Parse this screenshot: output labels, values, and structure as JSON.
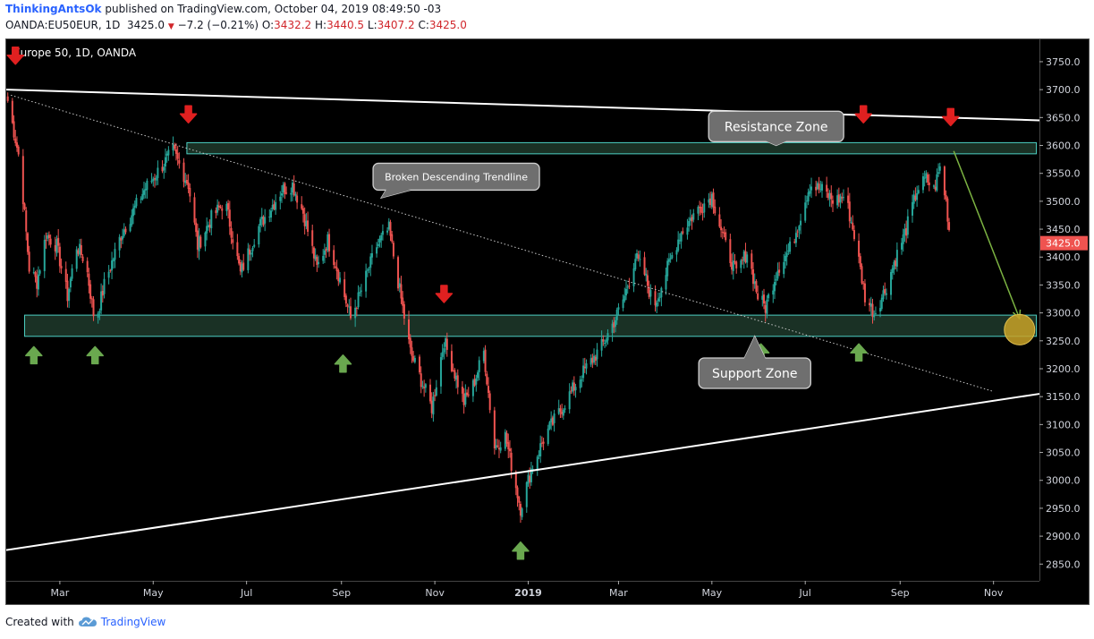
{
  "header": {
    "author": "ThinkingAntsOk",
    "published": "published on TradingView.com, October 04, 2019 08:49:50 -03",
    "symbol_line": "OANDA:EU50EUR, 1D",
    "last": "3425.0",
    "change": "−7.2 (−0.21%)",
    "ohlc_open_label": "O:",
    "ohlc_open": "3432.2",
    "ohlc_high_label": "H:",
    "ohlc_high": "3440.5",
    "ohlc_low_label": "L:",
    "ohlc_low": "3407.2",
    "ohlc_close_label": "C:",
    "ohlc_close": "3425.0"
  },
  "footer": {
    "created_with": "Created with",
    "brand": "TradingView"
  },
  "colors": {
    "background": "#000000",
    "up": "#26a69a",
    "down": "#ef5350",
    "zone_border": "#4dd0c4",
    "zone_fill": "#1e3a2c",
    "arrow_red": "#e02020",
    "arrow_green": "#6aa84f",
    "target": "#c9a227"
  },
  "chart_data": {
    "type": "candlestick",
    "title": "Europe 50, 1D, OANDA",
    "ylim": [
      2820,
      3790
    ],
    "y_ticks": [
      "3750.0",
      "3700.0",
      "3650.0",
      "3600.0",
      "3550.0",
      "3500.0",
      "3450.0",
      "3400.0",
      "3350.0",
      "3300.0",
      "3250.0",
      "3200.0",
      "3150.0",
      "3100.0",
      "3050.0",
      "3000.0",
      "2950.0",
      "2900.0",
      "2850.0"
    ],
    "x_ticks": [
      {
        "label": "Mar",
        "date": "2018-03-01",
        "bold": false
      },
      {
        "label": "May",
        "date": "2018-05-01",
        "bold": false
      },
      {
        "label": "Jul",
        "date": "2018-07-01",
        "bold": false
      },
      {
        "label": "Sep",
        "date": "2018-09-01",
        "bold": false
      },
      {
        "label": "Nov",
        "date": "2018-11-01",
        "bold": false
      },
      {
        "label": "2019",
        "date": "2019-01-01",
        "bold": true
      },
      {
        "label": "Mar",
        "date": "2019-03-01",
        "bold": false
      },
      {
        "label": "May",
        "date": "2019-05-01",
        "bold": false
      },
      {
        "label": "Jul",
        "date": "2019-07-01",
        "bold": false
      },
      {
        "label": "Sep",
        "date": "2019-09-01",
        "bold": false
      },
      {
        "label": "Nov",
        "date": "2019-11-01",
        "bold": false
      }
    ],
    "xlim": [
      "2018-01-25",
      "2019-12-01"
    ],
    "last_price_label": "3425.0",
    "price_path": [
      [
        "2018-01-26",
        3680
      ],
      [
        "2018-02-03",
        3570
      ],
      [
        "2018-02-09",
        3380
      ],
      [
        "2018-02-14",
        3355
      ],
      [
        "2018-02-20",
        3440
      ],
      [
        "2018-02-27",
        3420
      ],
      [
        "2018-03-06",
        3330
      ],
      [
        "2018-03-12",
        3420
      ],
      [
        "2018-03-18",
        3390
      ],
      [
        "2018-03-24",
        3280
      ],
      [
        "2018-03-30",
        3350
      ],
      [
        "2018-04-10",
        3440
      ],
      [
        "2018-04-25",
        3520
      ],
      [
        "2018-05-14",
        3590
      ],
      [
        "2018-05-24",
        3530
      ],
      [
        "2018-05-30",
        3420
      ],
      [
        "2018-06-08",
        3470
      ],
      [
        "2018-06-17",
        3500
      ],
      [
        "2018-06-27",
        3370
      ],
      [
        "2018-07-08",
        3450
      ],
      [
        "2018-07-24",
        3520
      ],
      [
        "2018-07-31",
        3530
      ],
      [
        "2018-08-07",
        3480
      ],
      [
        "2018-08-16",
        3380
      ],
      [
        "2018-08-23",
        3430
      ],
      [
        "2018-08-28",
        3390
      ],
      [
        "2018-09-07",
        3290
      ],
      [
        "2018-09-14",
        3340
      ],
      [
        "2018-09-24",
        3420
      ],
      [
        "2018-10-02",
        3450
      ],
      [
        "2018-10-09",
        3340
      ],
      [
        "2018-10-16",
        3230
      ],
      [
        "2018-10-23",
        3180
      ],
      [
        "2018-10-30",
        3130
      ],
      [
        "2018-11-07",
        3250
      ],
      [
        "2018-11-13",
        3200
      ],
      [
        "2018-11-20",
        3140
      ],
      [
        "2018-11-26",
        3170
      ],
      [
        "2018-12-03",
        3230
      ],
      [
        "2018-12-10",
        3060
      ],
      [
        "2018-12-17",
        3080
      ],
      [
        "2018-12-27",
        2950
      ],
      [
        "2019-01-03",
        3020
      ],
      [
        "2019-01-12",
        3080
      ],
      [
        "2019-01-23",
        3130
      ],
      [
        "2019-02-05",
        3190
      ],
      [
        "2019-02-18",
        3240
      ],
      [
        "2019-02-27",
        3290
      ],
      [
        "2019-03-05",
        3330
      ],
      [
        "2019-03-12",
        3400
      ],
      [
        "2019-03-18",
        3370
      ],
      [
        "2019-03-24",
        3310
      ],
      [
        "2019-04-02",
        3380
      ],
      [
        "2019-04-10",
        3440
      ],
      [
        "2019-04-20",
        3480
      ],
      [
        "2019-05-01",
        3510
      ],
      [
        "2019-05-10",
        3420
      ],
      [
        "2019-05-17",
        3370
      ],
      [
        "2019-05-24",
        3410
      ],
      [
        "2019-05-31",
        3330
      ],
      [
        "2019-06-05",
        3310
      ],
      [
        "2019-06-13",
        3380
      ],
      [
        "2019-06-22",
        3420
      ],
      [
        "2019-07-04",
        3530
      ],
      [
        "2019-07-12",
        3520
      ],
      [
        "2019-07-20",
        3500
      ],
      [
        "2019-07-27",
        3510
      ],
      [
        "2019-08-02",
        3440
      ],
      [
        "2019-08-09",
        3330
      ],
      [
        "2019-08-15",
        3300
      ],
      [
        "2019-08-22",
        3340
      ],
      [
        "2019-08-28",
        3390
      ],
      [
        "2019-09-05",
        3450
      ],
      [
        "2019-09-12",
        3520
      ],
      [
        "2019-09-18",
        3540
      ],
      [
        "2019-09-23",
        3520
      ],
      [
        "2019-09-27",
        3560
      ],
      [
        "2019-10-01",
        3500
      ],
      [
        "2019-10-04",
        3425
      ]
    ],
    "lines": [
      {
        "name": "upper-trendline",
        "from": [
          "2018-01-25",
          3700
        ],
        "to": [
          "2019-12-01",
          3645
        ],
        "style": "solid"
      },
      {
        "name": "lower-trendline",
        "from": [
          "2018-01-25",
          2875
        ],
        "to": [
          "2019-12-01",
          3155
        ],
        "style": "solid"
      },
      {
        "name": "broken-descending-trendline",
        "from": [
          "2018-01-28",
          3690
        ],
        "to": [
          "2019-10-31",
          3160
        ],
        "style": "dotted"
      },
      {
        "name": "projection-arrow",
        "from": [
          "2019-10-06",
          3590
        ],
        "to": [
          "2019-11-18",
          3290
        ],
        "style": "arrow"
      }
    ],
    "zones": [
      {
        "name": "resistance-zone",
        "from": "2018-05-23",
        "to": "2019-11-29",
        "low": 3585,
        "high": 3605
      },
      {
        "name": "support-zone",
        "from": "2018-02-06",
        "to": "2019-11-29",
        "low": 3258,
        "high": 3296
      }
    ],
    "callouts": [
      {
        "name": "resistance-callout",
        "text": "Resistance Zone",
        "at": [
          "2019-06-12",
          3634
        ],
        "tip": [
          "2019-06-12",
          3600
        ]
      },
      {
        "name": "broken-trendline-callout",
        "text": "Broken Descending Trendline",
        "at": [
          "2018-11-15",
          3544
        ],
        "tip": [
          "2018-09-27",
          3506
        ]
      },
      {
        "name": "support-callout",
        "text": "Support Zone",
        "at": [
          "2019-05-29",
          3192
        ],
        "tip": [
          "2019-05-29",
          3258
        ]
      }
    ],
    "markers": [
      {
        "kind": "down",
        "date": "2018-01-31",
        "price": 3760
      },
      {
        "kind": "down",
        "date": "2018-05-24",
        "price": 3655
      },
      {
        "kind": "down",
        "date": "2018-11-07",
        "price": 3333
      },
      {
        "kind": "down",
        "date": "2019-08-08",
        "price": 3655
      },
      {
        "kind": "down",
        "date": "2019-10-04",
        "price": 3650
      },
      {
        "kind": "up",
        "date": "2018-02-12",
        "price": 3225
      },
      {
        "kind": "up",
        "date": "2018-03-24",
        "price": 3225
      },
      {
        "kind": "up",
        "date": "2018-09-02",
        "price": 3210
      },
      {
        "kind": "up",
        "date": "2019-06-02",
        "price": 3230
      },
      {
        "kind": "up",
        "date": "2019-08-05",
        "price": 3230
      },
      {
        "kind": "up",
        "date": "2018-12-27",
        "price": 2875
      }
    ],
    "target": {
      "date": "2019-11-18",
      "price": 3270
    }
  }
}
